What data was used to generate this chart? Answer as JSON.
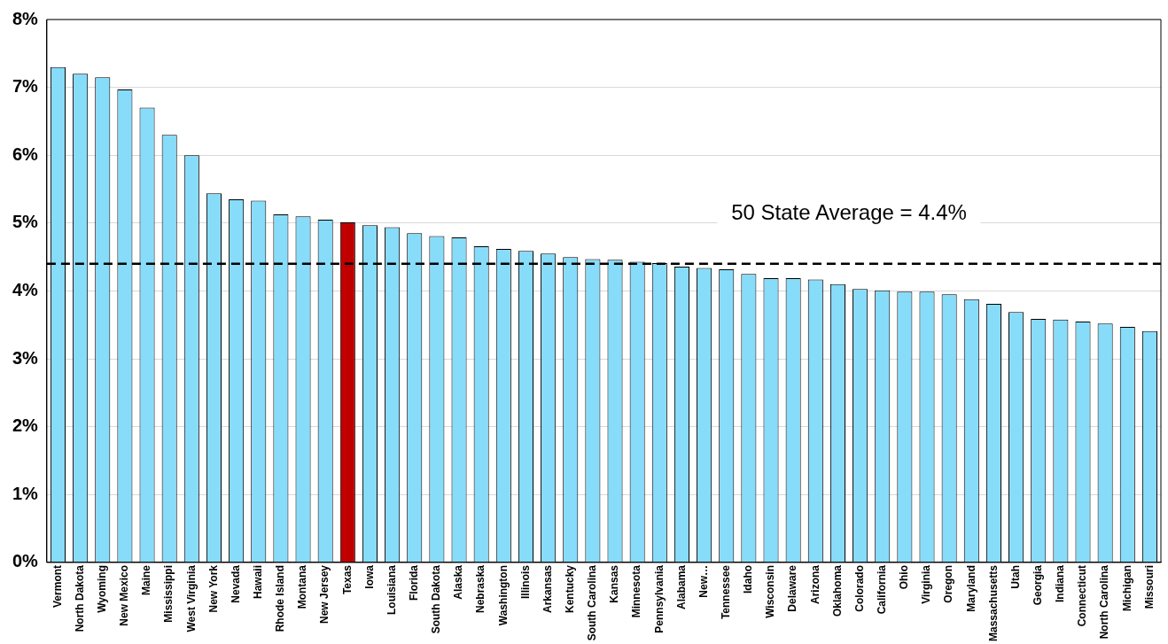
{
  "chart_data": {
    "type": "bar",
    "categories": [
      "Vermont",
      "North Dakota",
      "Wyoming",
      "New Mexico",
      "Maine",
      "Mississippi",
      "West Virginia",
      "New York",
      "Nevada",
      "Hawaii",
      "Rhode Island",
      "Montana",
      "New Jersey",
      "Texas",
      "Iowa",
      "Louisiana",
      "Florida",
      "South Dakota",
      "Alaska",
      "Nebraska",
      "Washington",
      "Illinois",
      "Arkansas",
      "Kentucky",
      "South Carolina",
      "Kansas",
      "Minnesota",
      "Pennsylvania",
      "Alabama",
      "New…",
      "Tennessee",
      "Idaho",
      "Wisconsin",
      "Delaware",
      "Arizona",
      "Oklahoma",
      "Colorado",
      "California",
      "Ohio",
      "Virginia",
      "Oregon",
      "Maryland",
      "Massachusetts",
      "Utah",
      "Georgia",
      "Indiana",
      "Connecticut",
      "North Carolina",
      "Michigan",
      "Missouri"
    ],
    "values": [
      7.3,
      7.2,
      7.15,
      6.97,
      6.7,
      6.3,
      6.0,
      5.44,
      5.35,
      5.33,
      5.13,
      5.1,
      5.05,
      5.01,
      4.97,
      4.94,
      4.85,
      4.81,
      4.79,
      4.66,
      4.62,
      4.59,
      4.55,
      4.5,
      4.47,
      4.46,
      4.43,
      4.41,
      4.36,
      4.34,
      4.32,
      4.25,
      4.19,
      4.19,
      4.17,
      4.1,
      4.03,
      4.01,
      3.99,
      3.99,
      3.95,
      3.88,
      3.81,
      3.69,
      3.59,
      3.58,
      3.55,
      3.52,
      3.47,
      3.41
    ],
    "colors": [
      "#87dcfa",
      "#87dcfa",
      "#87dcfa",
      "#87dcfa",
      "#87dcfa",
      "#87dcfa",
      "#87dcfa",
      "#87dcfa",
      "#87dcfa",
      "#87dcfa",
      "#87dcfa",
      "#87dcfa",
      "#87dcfa",
      "#c00000",
      "#87dcfa",
      "#87dcfa",
      "#87dcfa",
      "#87dcfa",
      "#87dcfa",
      "#87dcfa",
      "#87dcfa",
      "#87dcfa",
      "#87dcfa",
      "#87dcfa",
      "#87dcfa",
      "#87dcfa",
      "#87dcfa",
      "#87dcfa",
      "#87dcfa",
      "#87dcfa",
      "#87dcfa",
      "#87dcfa",
      "#87dcfa",
      "#87dcfa",
      "#87dcfa",
      "#87dcfa",
      "#87dcfa",
      "#87dcfa",
      "#87dcfa",
      "#87dcfa",
      "#87dcfa",
      "#87dcfa",
      "#87dcfa",
      "#87dcfa",
      "#87dcfa",
      "#87dcfa",
      "#87dcfa",
      "#87dcfa",
      "#87dcfa",
      "#87dcfa"
    ],
    "ylim": [
      0,
      8
    ],
    "yticks": [
      {
        "value": 0,
        "label": "0%"
      },
      {
        "value": 1,
        "label": "1%"
      },
      {
        "value": 2,
        "label": "2%"
      },
      {
        "value": 3,
        "label": "3%"
      },
      {
        "value": 4,
        "label": "4%"
      },
      {
        "value": 5,
        "label": "5%"
      },
      {
        "value": 6,
        "label": "6%"
      },
      {
        "value": 7,
        "label": "7%"
      },
      {
        "value": 8,
        "label": "8%"
      }
    ],
    "grid": "y",
    "ref_lines": [
      {
        "axis": "y",
        "value": 4.4,
        "label": "50 State Average = 4.4%",
        "color": "#000000",
        "line_style": "dashed"
      }
    ]
  }
}
